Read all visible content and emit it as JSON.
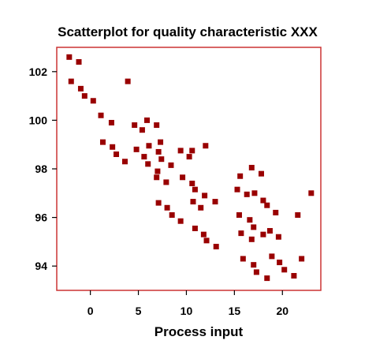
{
  "chart_data": {
    "type": "scatter",
    "title": "Scatterplot for quality characteristic XXX",
    "xlabel": "Process input",
    "ylabel": "",
    "xlim": [
      -3.5,
      24
    ],
    "ylim": [
      93,
      103
    ],
    "xticks": [
      0,
      5,
      10,
      15,
      20
    ],
    "yticks": [
      94,
      96,
      98,
      100,
      102
    ],
    "grid": false,
    "legend": "none",
    "marker_color": "#990000",
    "frame_color": "#cc3333",
    "points": [
      {
        "x": -2.2,
        "y": 102.6
      },
      {
        "x": -1.2,
        "y": 102.4
      },
      {
        "x": -2.0,
        "y": 101.6
      },
      {
        "x": -1.0,
        "y": 101.3
      },
      {
        "x": -0.6,
        "y": 101.0
      },
      {
        "x": 0.3,
        "y": 100.8
      },
      {
        "x": 1.1,
        "y": 100.2
      },
      {
        "x": 2.2,
        "y": 99.9
      },
      {
        "x": 3.9,
        "y": 101.6
      },
      {
        "x": 1.3,
        "y": 99.1
      },
      {
        "x": 2.3,
        "y": 98.9
      },
      {
        "x": 2.7,
        "y": 98.6
      },
      {
        "x": 3.6,
        "y": 98.3
      },
      {
        "x": 4.6,
        "y": 99.8
      },
      {
        "x": 5.4,
        "y": 99.6
      },
      {
        "x": 5.9,
        "y": 100.0
      },
      {
        "x": 6.9,
        "y": 99.8
      },
      {
        "x": 4.8,
        "y": 98.8
      },
      {
        "x": 5.6,
        "y": 98.5
      },
      {
        "x": 6.1,
        "y": 98.95
      },
      {
        "x": 6.0,
        "y": 98.2
      },
      {
        "x": 7.1,
        "y": 98.7
      },
      {
        "x": 7.3,
        "y": 99.1
      },
      {
        "x": 7.4,
        "y": 98.4
      },
      {
        "x": 7.0,
        "y": 97.9
      },
      {
        "x": 6.9,
        "y": 97.65
      },
      {
        "x": 7.9,
        "y": 97.45
      },
      {
        "x": 8.4,
        "y": 98.15
      },
      {
        "x": 9.4,
        "y": 98.75
      },
      {
        "x": 10.3,
        "y": 98.5
      },
      {
        "x": 10.6,
        "y": 98.75
      },
      {
        "x": 12.0,
        "y": 98.95
      },
      {
        "x": 9.6,
        "y": 97.65
      },
      {
        "x": 10.6,
        "y": 97.4
      },
      {
        "x": 10.9,
        "y": 97.15
      },
      {
        "x": 11.9,
        "y": 96.9
      },
      {
        "x": 10.7,
        "y": 96.65
      },
      {
        "x": 11.5,
        "y": 96.4
      },
      {
        "x": 13.0,
        "y": 96.65
      },
      {
        "x": 7.1,
        "y": 96.6
      },
      {
        "x": 8.0,
        "y": 96.4
      },
      {
        "x": 8.5,
        "y": 96.1
      },
      {
        "x": 9.4,
        "y": 95.85
      },
      {
        "x": 10.9,
        "y": 95.55
      },
      {
        "x": 11.8,
        "y": 95.3
      },
      {
        "x": 12.1,
        "y": 95.05
      },
      {
        "x": 13.1,
        "y": 94.8
      },
      {
        "x": 15.6,
        "y": 97.7
      },
      {
        "x": 15.3,
        "y": 97.15
      },
      {
        "x": 16.3,
        "y": 96.95
      },
      {
        "x": 16.8,
        "y": 98.05
      },
      {
        "x": 17.1,
        "y": 97.0
      },
      {
        "x": 17.8,
        "y": 97.8
      },
      {
        "x": 18.0,
        "y": 96.7
      },
      {
        "x": 15.5,
        "y": 96.1
      },
      {
        "x": 16.6,
        "y": 95.9
      },
      {
        "x": 18.4,
        "y": 96.5
      },
      {
        "x": 19.3,
        "y": 96.2
      },
      {
        "x": 21.6,
        "y": 96.1
      },
      {
        "x": 23.0,
        "y": 97.0
      },
      {
        "x": 15.7,
        "y": 95.35
      },
      {
        "x": 17.0,
        "y": 95.6
      },
      {
        "x": 16.8,
        "y": 95.1
      },
      {
        "x": 18.0,
        "y": 95.3
      },
      {
        "x": 18.7,
        "y": 95.45
      },
      {
        "x": 19.6,
        "y": 95.2
      },
      {
        "x": 15.9,
        "y": 94.3
      },
      {
        "x": 17.0,
        "y": 94.05
      },
      {
        "x": 17.3,
        "y": 93.75
      },
      {
        "x": 18.9,
        "y": 94.4
      },
      {
        "x": 19.7,
        "y": 94.15
      },
      {
        "x": 20.2,
        "y": 93.85
      },
      {
        "x": 18.4,
        "y": 93.5
      },
      {
        "x": 21.2,
        "y": 93.6
      },
      {
        "x": 22.0,
        "y": 94.3
      }
    ]
  }
}
